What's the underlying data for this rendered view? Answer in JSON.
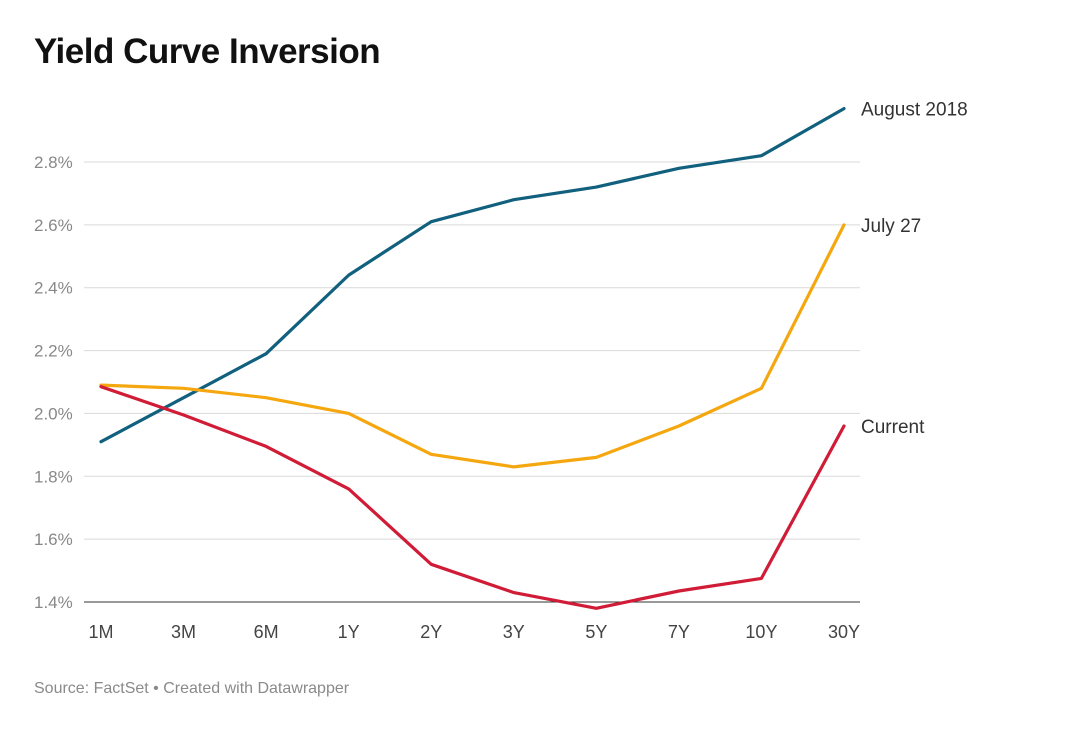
{
  "chart_data": {
    "type": "line",
    "title": "Yield Curve Inversion",
    "source": "Source: FactSet • Created with Datawrapper",
    "categories": [
      "1M",
      "3M",
      "6M",
      "1Y",
      "2Y",
      "3Y",
      "5Y",
      "7Y",
      "10Y",
      "30Y"
    ],
    "ylim": [
      1.4,
      2.8
    ],
    "yticks": [
      1.4,
      1.6,
      1.8,
      2.0,
      2.2,
      2.4,
      2.6,
      2.8
    ],
    "ytick_labels": [
      "1.4%",
      "1.6%",
      "1.8%",
      "2.0%",
      "2.2%",
      "2.4%",
      "2.6%",
      "2.8%"
    ],
    "grid": true,
    "legend": "direct labels at line ends",
    "series": [
      {
        "name": "August 2018",
        "color": "#11607e",
        "values": [
          1.91,
          2.05,
          2.19,
          2.44,
          2.61,
          2.68,
          2.72,
          2.78,
          2.82,
          2.97
        ]
      },
      {
        "name": "July 27",
        "color": "#f5a70f",
        "values": [
          2.09,
          2.08,
          2.05,
          2.0,
          1.87,
          1.83,
          1.86,
          1.96,
          2.08,
          2.6
        ]
      },
      {
        "name": "Current",
        "color": "#d01c37",
        "values": [
          2.085,
          1.995,
          1.895,
          1.76,
          1.52,
          1.43,
          1.38,
          1.435,
          1.475,
          1.96
        ]
      }
    ]
  }
}
